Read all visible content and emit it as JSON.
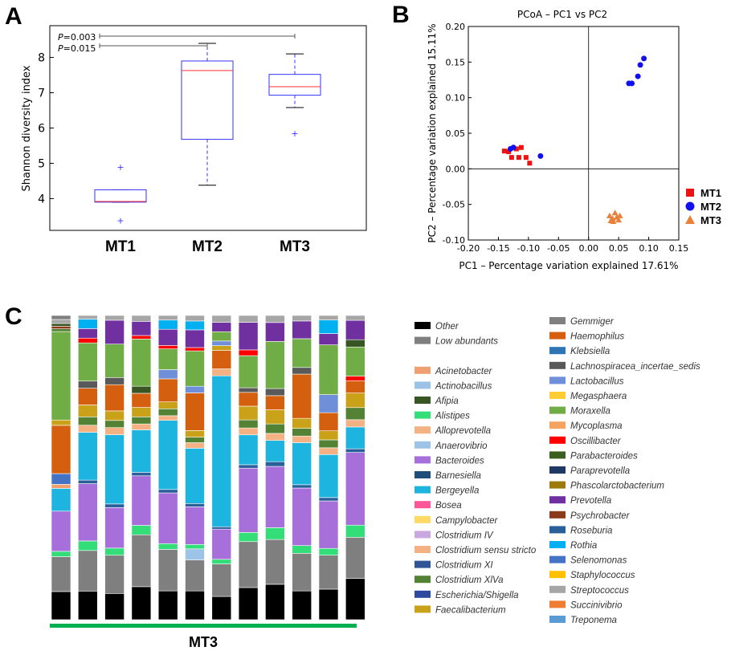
{
  "panels": {
    "a": "A",
    "b": "B",
    "c": "C"
  },
  "chart_data": [
    {
      "type": "box",
      "ylabel": "Shannon diversity index",
      "ylim": [
        3.1,
        8.9
      ],
      "yticks": [
        4,
        5,
        6,
        7,
        8
      ],
      "categories": [
        "MT1",
        "MT2",
        "MT3"
      ],
      "boxes": [
        {
          "whisker_low": 3.9,
          "q1": 3.9,
          "median": 3.92,
          "q3": 4.25,
          "whisker_high": 4.25,
          "outliers": [
            4.9,
            3.38
          ]
        },
        {
          "whisker_low": 4.38,
          "q1": 5.68,
          "median": 7.63,
          "q3": 7.9,
          "whisker_high": 8.4,
          "outliers": []
        },
        {
          "whisker_low": 6.58,
          "q1": 6.93,
          "median": 7.17,
          "q3": 7.52,
          "whisker_high": 8.1,
          "outliers": [
            5.85
          ]
        }
      ],
      "annotations": [
        {
          "from": "MT1",
          "to": "MT3",
          "p_label": "P",
          "p_value": "=0.003"
        },
        {
          "from": "MT1",
          "to": "MT2",
          "p_label": "P",
          "p_value": "=0.015"
        }
      ],
      "colors": {
        "box": "#3333ff",
        "median": "#ff3333",
        "whisker_cap": "#000000",
        "outlier": "#3333ff"
      }
    },
    {
      "type": "scatter",
      "title": "PCoA – PC1 vs PC2",
      "xlabel": "PC1 – Percentage variation explained 17.61%",
      "ylabel": "PC2 – Percentage variation explained 15.11%",
      "xlim": [
        -0.2,
        0.15
      ],
      "ylim": [
        -0.1,
        0.2
      ],
      "xticks": [
        "-0.20",
        "-0.15",
        "-0.10",
        "-0.05",
        "0.00",
        "0.05",
        "0.10",
        "0.15"
      ],
      "yticks": [
        "-0.10",
        "-0.05",
        "0.00",
        "0.05",
        "0.10",
        "0.15",
        "0.20"
      ],
      "grid": false,
      "legend_position": "right",
      "series": [
        {
          "name": "MT1",
          "marker": "square",
          "color": "#ee1111",
          "points": [
            [
              -0.14,
              0.025
            ],
            [
              -0.133,
              0.024
            ],
            [
              -0.128,
              0.016
            ],
            [
              -0.12,
              0.028
            ],
            [
              -0.116,
              0.016
            ],
            [
              -0.104,
              0.016
            ],
            [
              -0.098,
              0.008
            ],
            [
              -0.112,
              0.03
            ]
          ]
        },
        {
          "name": "MT2",
          "marker": "circle",
          "color": "#1111ee",
          "points": [
            [
              -0.13,
              0.028
            ],
            [
              -0.125,
              0.03
            ],
            [
              -0.08,
              0.018
            ],
            [
              0.067,
              0.12
            ],
            [
              0.072,
              0.12
            ],
            [
              0.082,
              0.13
            ],
            [
              0.086,
              0.146
            ],
            [
              0.092,
              0.155
            ]
          ]
        },
        {
          "name": "MT3",
          "marker": "triangle",
          "color": "#e8813a",
          "points": [
            [
              0.035,
              -0.066
            ],
            [
              0.04,
              -0.07
            ],
            [
              0.044,
              -0.062
            ],
            [
              0.047,
              -0.068
            ],
            [
              0.041,
              -0.074
            ],
            [
              0.05,
              -0.072
            ],
            [
              0.037,
              -0.073
            ],
            [
              0.052,
              -0.066
            ]
          ]
        }
      ]
    },
    {
      "type": "bar",
      "stacked": true,
      "group_label": "MT3",
      "legend_col1": [
        "Other",
        "Low abundants",
        "",
        "Acinetobacter",
        "Actinobacillus",
        "Afipia",
        "Alistipes",
        "Alloprevotella",
        "Anaerovibrio",
        "Bacteroides",
        "Barnesiella",
        "Bergeyella",
        "Bosea",
        "Campylobacter",
        "Clostridium IV",
        "Clostridium sensu stricto",
        "Clostridium XI",
        "Clostridium XlVa",
        "Escherichia/Shigella",
        "Faecalibacterium"
      ],
      "legend_col2": [
        "Gemmiger",
        "Haemophilus",
        "Klebsiella",
        "Lachnospiracea_incertae_sedis",
        "Lactobacillus",
        "Megasphaera",
        "Moraxella",
        "Mycoplasma",
        "Oscillibacter",
        "Parabacteroides",
        "Paraprevotella",
        "Phascolarctobacterium",
        "Prevotella",
        "Psychrobacter",
        "Roseburia",
        "Rothia",
        "Selenomonas",
        "Staphylococcus",
        "Streptococcus",
        "Succinivibrio",
        "Treponema"
      ],
      "taxon_colors": {
        "Other": "#000000",
        "Low abundants": "#7f7f7f",
        "Acinetobacter": "#f0a070",
        "Actinobacillus": "#9cc3e5",
        "Afipia": "#375623",
        "Alistipes": "#33dd77",
        "Alloprevotella": "#f4b183",
        "Anaerovibrio": "#9dc3e6",
        "Bacteroides": "#a66fd9",
        "Barnesiella": "#1f4e79",
        "Bergeyella": "#1eb4e0",
        "Bosea": "#ff5599",
        "Campylobacter": "#ffd966",
        "Clostridium IV": "#c9a8e0",
        "Clostridium sensu stricto": "#f4b183",
        "Clostridium XI": "#2f5597",
        "Clostridium XlVa": "#548235",
        "Escherichia/Shigella": "#2e4a9e",
        "Faecalibacterium": "#c9a21a",
        "Gemmiger": "#808080",
        "Haemophilus": "#d45f0e",
        "Klebsiella": "#2e75b6",
        "Lachnospiracea_incertae_sedis": "#595959",
        "Lactobacillus": "#6f8fd8",
        "Megasphaera": "#ffcc33",
        "Moraxella": "#70ad47",
        "Mycoplasma": "#f4a460",
        "Oscillibacter": "#ff0000",
        "Parabacteroides": "#3a5f1e",
        "Paraprevotella": "#1f3864",
        "Phascolarctobacterium": "#9c7a0c",
        "Prevotella": "#7030a0",
        "Psychrobacter": "#8b3a1a",
        "Roseburia": "#2a6099",
        "Rothia": "#00b0f0",
        "Selenomonas": "#4472c4",
        "Staphylococcus": "#ffc000",
        "Streptococcus": "#a6a6a6",
        "Succinivibrio": "#ed7d31",
        "Treponema": "#5b9bd5"
      },
      "bars": [
        [
          [
            "Other",
            0.105
          ],
          [
            "Low abundants",
            0.13
          ],
          [
            "Alistipes",
            0.02
          ],
          [
            "Bacteroides",
            0.15
          ],
          [
            "Bergeyella",
            0.085
          ],
          [
            "Acinetobacter",
            0.015
          ],
          [
            "Selenomonas",
            0.04
          ],
          [
            "Haemophilus",
            0.18
          ],
          [
            "Faecalibacterium",
            0.02
          ],
          [
            "Moraxella",
            0.33
          ],
          [
            "Clostridium XlVa",
            0.01
          ],
          [
            "Psychrobacter",
            0.01
          ],
          [
            "Afipia",
            0.01
          ],
          [
            "Streptococcus",
            0.015
          ],
          [
            "Low abundants",
            0.015
          ]
        ],
        [
          [
            "Other",
            0.12
          ],
          [
            "Low abundants",
            0.17
          ],
          [
            "Alistipes",
            0.04
          ],
          [
            "Bacteroides",
            0.24
          ],
          [
            "Roseburia",
            0.015
          ],
          [
            "Bergeyella",
            0.2
          ],
          [
            "Alloprevotella",
            0.03
          ],
          [
            "Clostridium XlVa",
            0.035
          ],
          [
            "Faecalibacterium",
            0.05
          ],
          [
            "Haemophilus",
            0.07
          ],
          [
            "Lachnospiracea_incertae_sedis",
            0.03
          ],
          [
            "Moraxella",
            0.16
          ],
          [
            "Oscillibacter",
            0.02
          ],
          [
            "Prevotella",
            0.04
          ],
          [
            "Rothia",
            0.04
          ],
          [
            "Streptococcus",
            0.015
          ]
        ],
        [
          [
            "Other",
            0.11
          ],
          [
            "Low abundants",
            0.16
          ],
          [
            "Alistipes",
            0.03
          ],
          [
            "Bacteroides",
            0.17
          ],
          [
            "Roseburia",
            0.015
          ],
          [
            "Bergeyella",
            0.29
          ],
          [
            "Alloprevotella",
            0.03
          ],
          [
            "Clostridium XlVa",
            0.03
          ],
          [
            "Faecalibacterium",
            0.04
          ],
          [
            "Haemophilus",
            0.11
          ],
          [
            "Lachnospiracea_incertae_sedis",
            0.03
          ],
          [
            "Moraxella",
            0.14
          ],
          [
            "Prevotella",
            0.1
          ],
          [
            "Streptococcus",
            0.02
          ]
        ],
        [
          [
            "Other",
            0.14
          ],
          [
            "Low abundants",
            0.22
          ],
          [
            "Alistipes",
            0.04
          ],
          [
            "Bacteroides",
            0.21
          ],
          [
            "Roseburia",
            0.015
          ],
          [
            "Bergeyella",
            0.18
          ],
          [
            "Alloprevotella",
            0.025
          ],
          [
            "Clostridium XlVa",
            0.03
          ],
          [
            "Faecalibacterium",
            0.04
          ],
          [
            "Haemophilus",
            0.06
          ],
          [
            "Afipia",
            0.03
          ],
          [
            "Moraxella",
            0.2
          ],
          [
            "Oscillibacter",
            0.015
          ],
          [
            "Prevotella",
            0.06
          ],
          [
            "Streptococcus",
            0.025
          ]
        ],
        [
          [
            "Other",
            0.125
          ],
          [
            "Low abundants",
            0.18
          ],
          [
            "Alistipes",
            0.025
          ],
          [
            "Bacteroides",
            0.22
          ],
          [
            "Roseburia",
            0.015
          ],
          [
            "Bergeyella",
            0.3
          ],
          [
            "Alloprevotella",
            0.02
          ],
          [
            "Clostridium XlVa",
            0.03
          ],
          [
            "Faecalibacterium",
            0.03
          ],
          [
            "Haemophilus",
            0.1
          ],
          [
            "Lactobacillus",
            0.04
          ],
          [
            "Moraxella",
            0.09
          ],
          [
            "Oscillibacter",
            0.015
          ],
          [
            "Prevotella",
            0.07
          ],
          [
            "Rothia",
            0.04
          ],
          [
            "Streptococcus",
            0.02
          ]
        ],
        [
          [
            "Other",
            0.13
          ],
          [
            "Low abundants",
            0.14
          ],
          [
            "Anaerovibrio",
            0.05
          ],
          [
            "Alistipes",
            0.02
          ],
          [
            "Bacteroides",
            0.17
          ],
          [
            "Roseburia",
            0.015
          ],
          [
            "Bergeyella",
            0.25
          ],
          [
            "Alloprevotella",
            0.025
          ],
          [
            "Clostridium XlVa",
            0.025
          ],
          [
            "Faecalibacterium",
            0.03
          ],
          [
            "Haemophilus",
            0.17
          ],
          [
            "Lactobacillus",
            0.03
          ],
          [
            "Moraxella",
            0.16
          ],
          [
            "Oscillibacter",
            0.015
          ],
          [
            "Prevotella",
            0.08
          ],
          [
            "Rothia",
            0.04
          ],
          [
            "Streptococcus",
            0.025
          ]
        ],
        [
          [
            "Other",
            0.1
          ],
          [
            "Low abundants",
            0.14
          ],
          [
            "Alistipes",
            0.02
          ],
          [
            "Bacteroides",
            0.13
          ],
          [
            "Roseburia",
            0.01
          ],
          [
            "Bergeyella",
            0.65
          ],
          [
            "Alloprevotella",
            0.03
          ],
          [
            "Haemophilus",
            0.08
          ],
          [
            "Faecalibacterium",
            0.02
          ],
          [
            "Lactobacillus",
            0.02
          ],
          [
            "Moraxella",
            0.04
          ],
          [
            "Prevotella",
            0.04
          ],
          [
            "Streptococcus",
            0.03
          ]
        ],
        [
          [
            "Other",
            0.14
          ],
          [
            "Low abundants",
            0.2
          ],
          [
            "Alistipes",
            0.04
          ],
          [
            "Bacteroides",
            0.28
          ],
          [
            "Roseburia",
            0.015
          ],
          [
            "Bergeyella",
            0.13
          ],
          [
            "Alloprevotella",
            0.03
          ],
          [
            "Clostridium XlVa",
            0.035
          ],
          [
            "Faecalibacterium",
            0.06
          ],
          [
            "Haemophilus",
            0.06
          ],
          [
            "Lachnospiracea_incertae_sedis",
            0.02
          ],
          [
            "Moraxella",
            0.14
          ],
          [
            "Oscillibacter",
            0.025
          ],
          [
            "Prevotella",
            0.12
          ],
          [
            "Streptococcus",
            0.03
          ]
        ],
        [
          [
            "Other",
            0.15
          ],
          [
            "Low abundants",
            0.19
          ],
          [
            "Alistipes",
            0.05
          ],
          [
            "Bacteroides",
            0.26
          ],
          [
            "Roseburia",
            0.02
          ],
          [
            "Bergeyella",
            0.09
          ],
          [
            "Alloprevotella",
            0.03
          ],
          [
            "Clostridium XlVa",
            0.04
          ],
          [
            "Faecalibacterium",
            0.06
          ],
          [
            "Haemophilus",
            0.06
          ],
          [
            "Lachnospiracea_incertae_sedis",
            0.03
          ],
          [
            "Moraxella",
            0.2
          ],
          [
            "Prevotella",
            0.08
          ],
          [
            "Streptococcus",
            0.03
          ]
        ],
        [
          [
            "Other",
            0.13
          ],
          [
            "Low abundants",
            0.17
          ],
          [
            "Alistipes",
            0.035
          ],
          [
            "Bacteroides",
            0.26
          ],
          [
            "Roseburia",
            0.015
          ],
          [
            "Bergeyella",
            0.19
          ],
          [
            "Alloprevotella",
            0.03
          ],
          [
            "Clostridium XlVa",
            0.035
          ],
          [
            "Faecalibacterium",
            0.045
          ],
          [
            "Haemophilus",
            0.2
          ],
          [
            "Lachnospiracea_incertae_sedis",
            0.03
          ],
          [
            "Moraxella",
            0.13
          ],
          [
            "Prevotella",
            0.08
          ],
          [
            "Streptococcus",
            0.025
          ]
        ],
        [
          [
            "Other",
            0.135
          ],
          [
            "Low abundants",
            0.15
          ],
          [
            "Alistipes",
            0.03
          ],
          [
            "Bacteroides",
            0.21
          ],
          [
            "Roseburia",
            0.015
          ],
          [
            "Bergeyella",
            0.19
          ],
          [
            "Alloprevotella",
            0.03
          ],
          [
            "Clostridium XlVa",
            0.035
          ],
          [
            "Faecalibacterium",
            0.04
          ],
          [
            "Haemophilus",
            0.08
          ],
          [
            "Lactobacillus",
            0.08
          ],
          [
            "Moraxella",
            0.22
          ],
          [
            "Prevotella",
            0.05
          ],
          [
            "Rothia",
            0.06
          ],
          [
            "Streptococcus",
            0.02
          ]
        ],
        [
          [
            "Other",
            0.17
          ],
          [
            "Low abundants",
            0.17
          ],
          [
            "Alistipes",
            0.05
          ],
          [
            "Bacteroides",
            0.3
          ],
          [
            "Roseburia",
            0.015
          ],
          [
            "Bergeyella",
            0.09
          ],
          [
            "Alloprevotella",
            0.03
          ],
          [
            "Clostridium XlVa",
            0.05
          ],
          [
            "Faecalibacterium",
            0.06
          ],
          [
            "Haemophilus",
            0.05
          ],
          [
            "Oscillibacter",
            0.02
          ],
          [
            "Moraxella",
            0.12
          ],
          [
            "Afipia",
            0.03
          ],
          [
            "Prevotella",
            0.08
          ],
          [
            "Streptococcus",
            0.02
          ]
        ]
      ],
      "colors": {
        "group_bar": "#00b050"
      }
    }
  ]
}
